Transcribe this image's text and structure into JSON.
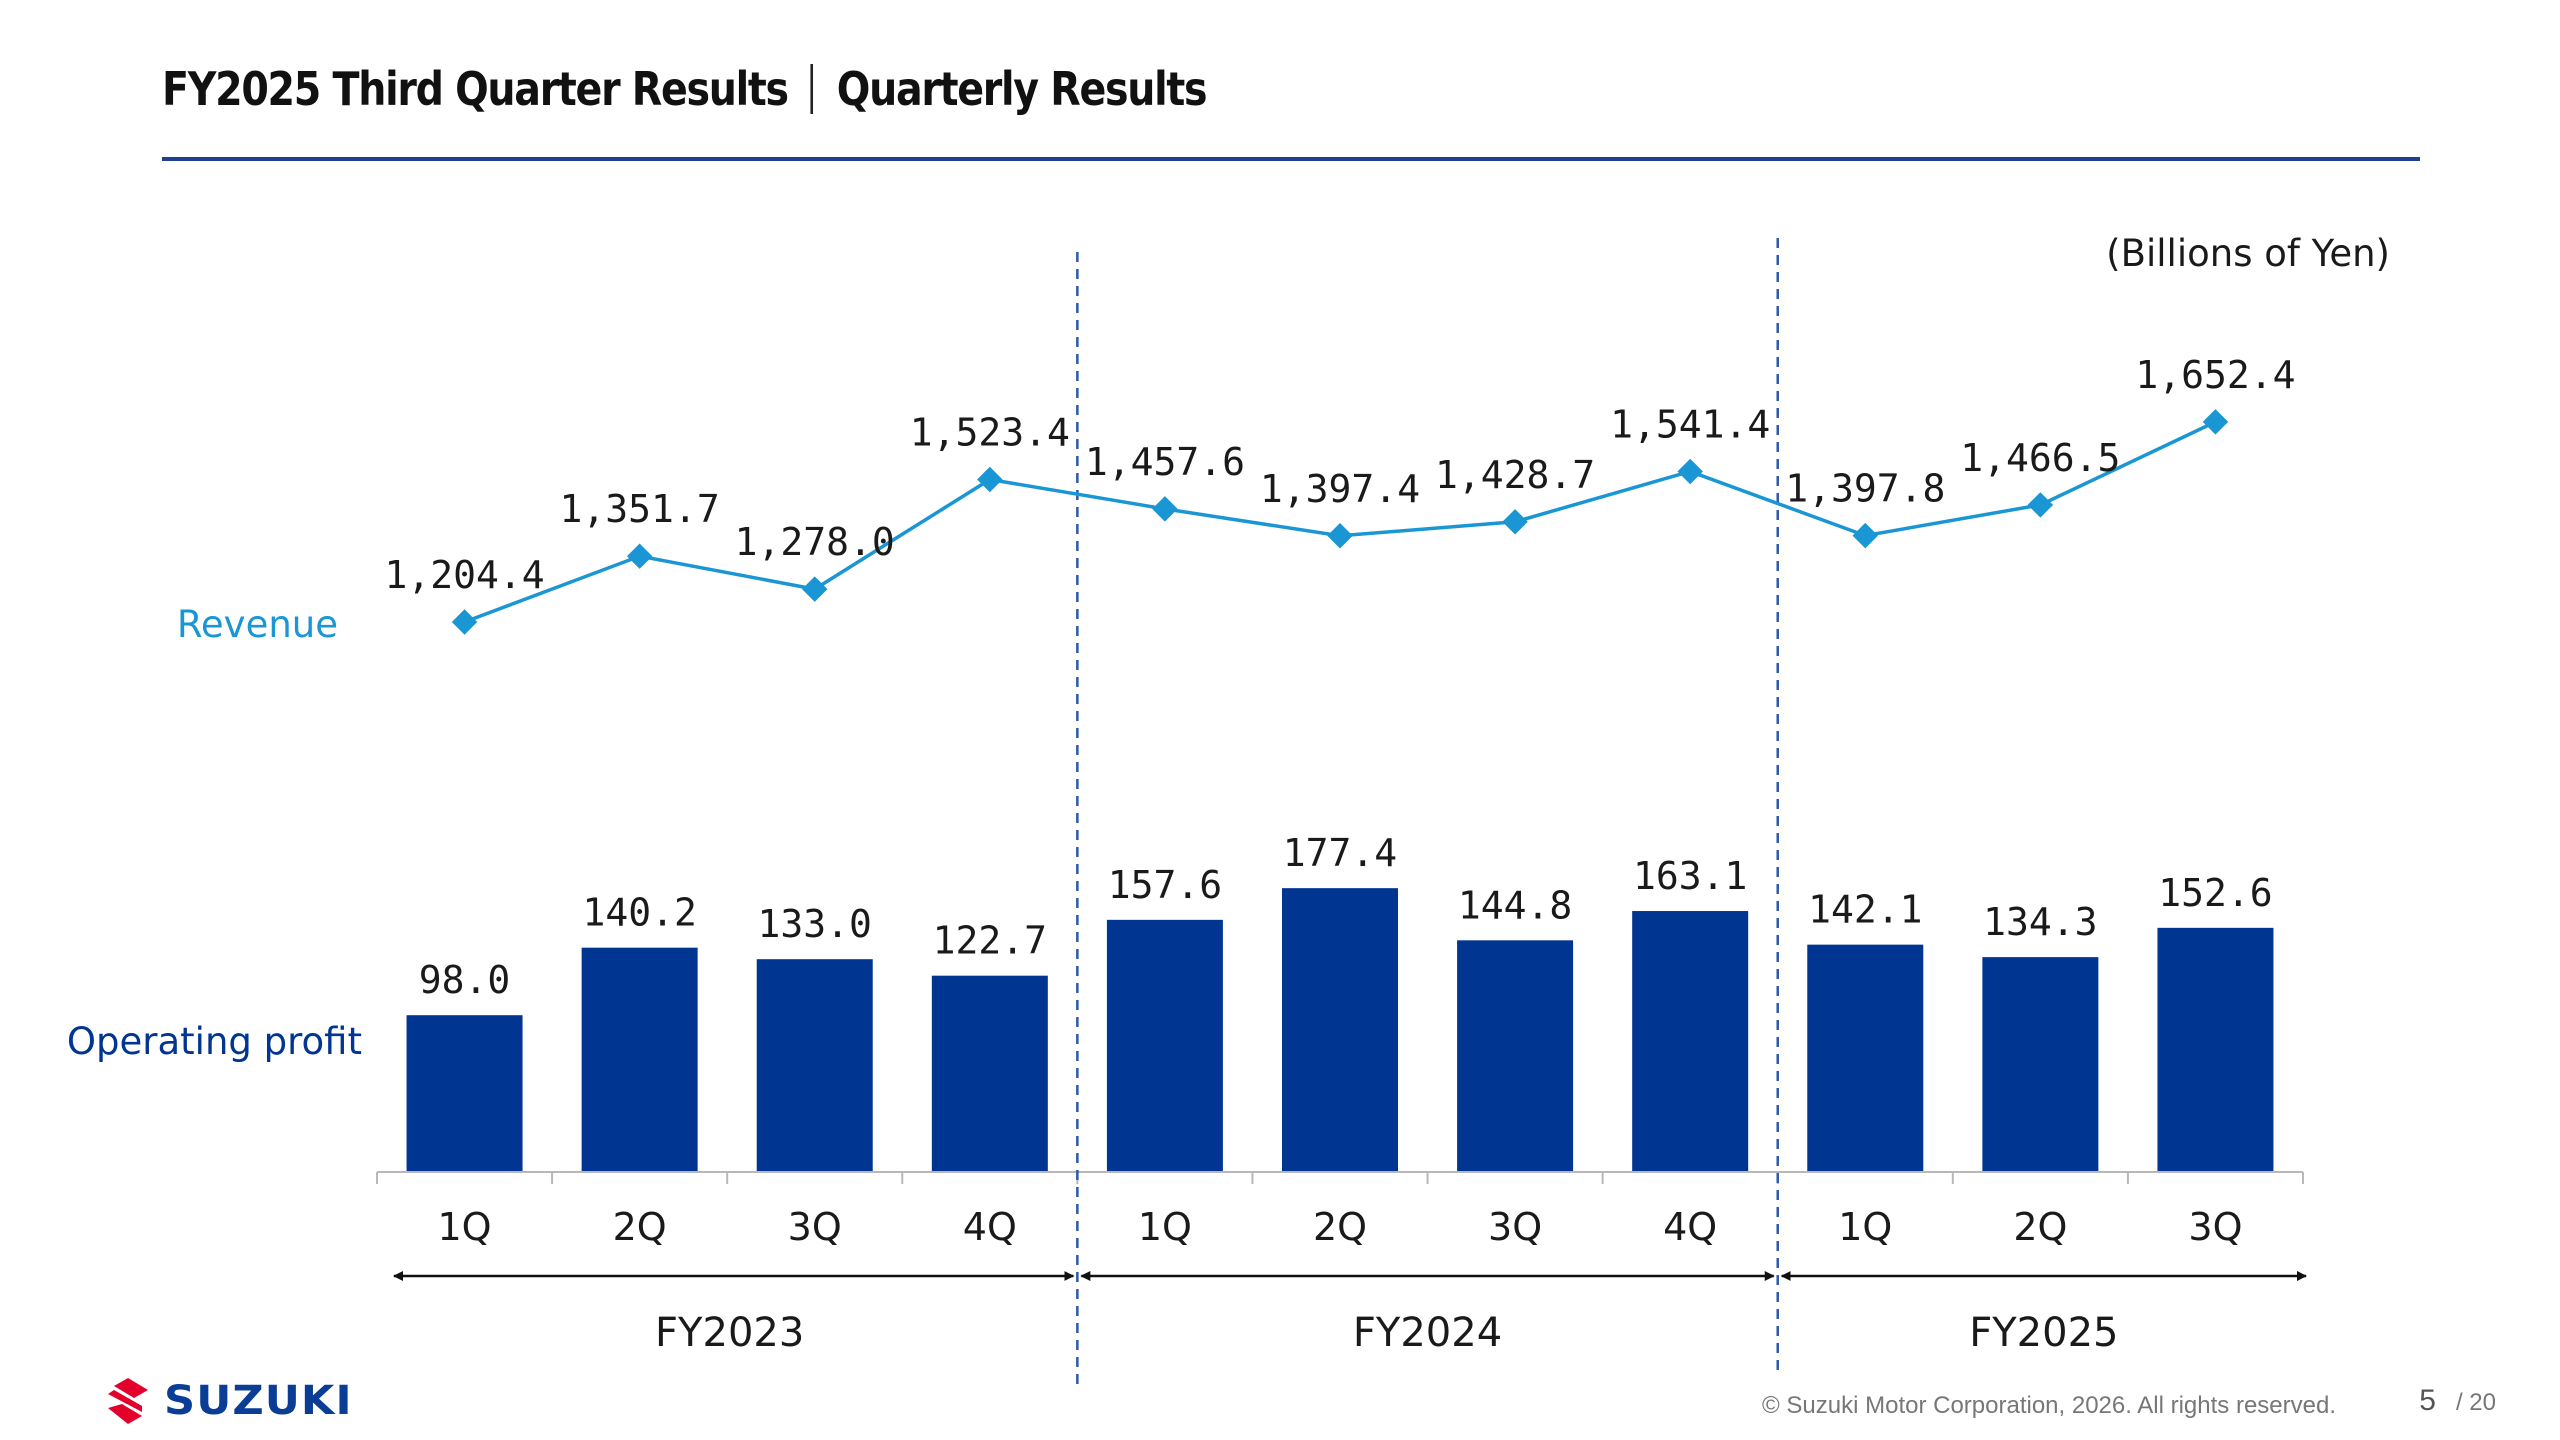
{
  "header": {
    "title": "FY2025 Third Quarter Results",
    "subtitle": "Quarterly Results"
  },
  "chart_data": {
    "type": "bar+line",
    "unit_label": "(Billions of Yen)",
    "categories": [
      "1Q",
      "2Q",
      "3Q",
      "4Q",
      "1Q",
      "2Q",
      "3Q",
      "4Q",
      "1Q",
      "2Q",
      "3Q"
    ],
    "groups": [
      {
        "label": "FY2023",
        "start": 0,
        "end": 3
      },
      {
        "label": "FY2024",
        "start": 4,
        "end": 7
      },
      {
        "label": "FY2025",
        "start": 8,
        "end": 10
      }
    ],
    "series": [
      {
        "name": "Revenue",
        "type": "line",
        "color": "#1a96d4",
        "values": [
          1204.4,
          1351.7,
          1278.0,
          1523.4,
          1457.6,
          1397.4,
          1428.7,
          1541.4,
          1397.8,
          1466.5,
          1652.4
        ],
        "labels": [
          "1,204.4",
          "1,351.7",
          "1,278.0",
          "1,523.4",
          "1,457.6",
          "1,397.4",
          "1,428.7",
          "1,541.4",
          "1,397.8",
          "1,466.5",
          "1,652.4"
        ]
      },
      {
        "name": "Operating profit",
        "type": "bar",
        "color": "#003591",
        "values": [
          98.0,
          140.2,
          133.0,
          122.7,
          157.6,
          177.4,
          144.8,
          163.1,
          142.1,
          134.3,
          152.6
        ],
        "labels": [
          "98.0",
          "140.2",
          "133.0",
          "122.7",
          "157.6",
          "177.4",
          "144.8",
          "163.1",
          "142.1",
          "134.3",
          "152.6"
        ]
      }
    ]
  },
  "footer": {
    "brand": "SUZUKI",
    "copyright": "© Suzuki Motor Corporation, 2026. All rights reserved.",
    "page": "5",
    "total": "/ 20"
  },
  "colors": {
    "accent": "#1f3f8f",
    "bar": "#003591",
    "line": "#1a96d4",
    "brand_red": "#e3002b"
  }
}
